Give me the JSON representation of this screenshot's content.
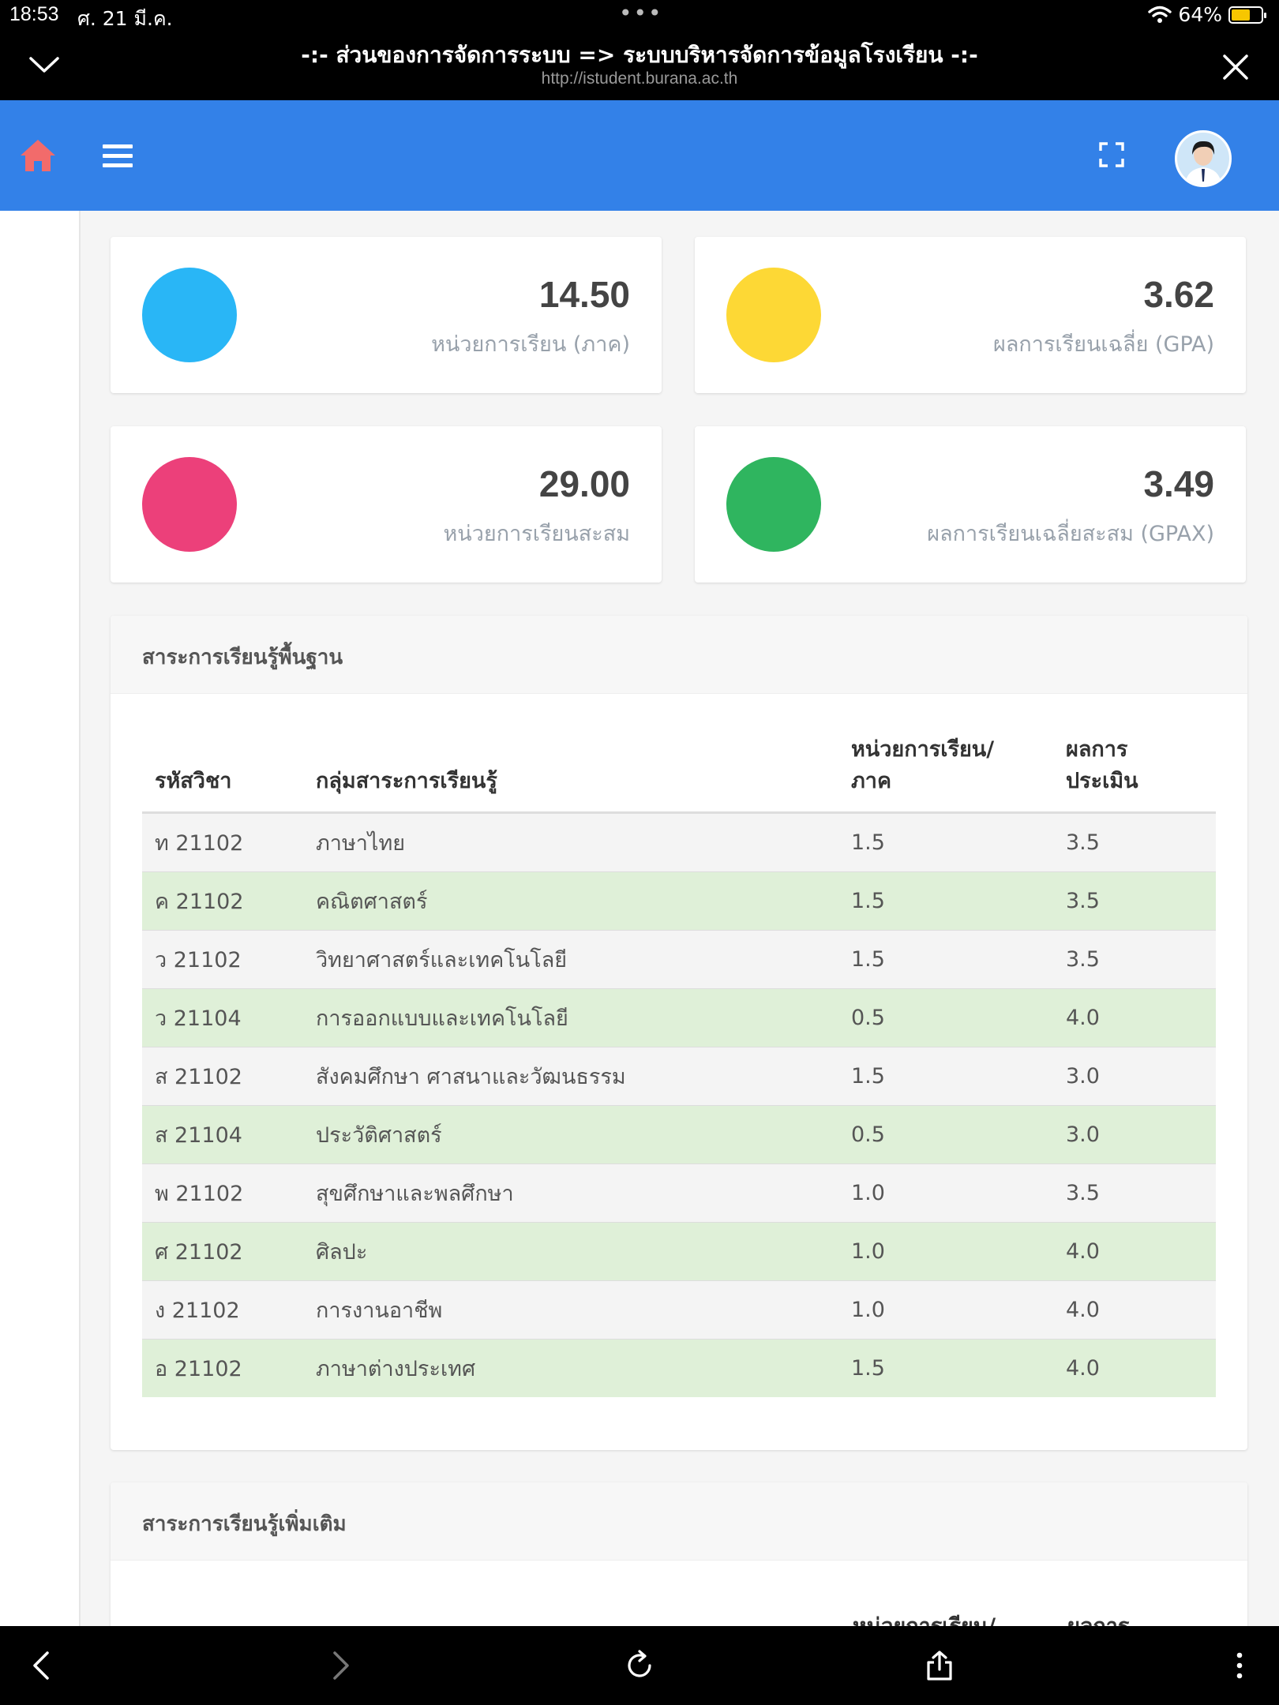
{
  "status_bar": {
    "time": "18:53",
    "date": "ศ. 21 มี.ค.",
    "battery": "64%",
    "battery_level": 0.64
  },
  "browser": {
    "title": "-:- ส่วนของการจัดการระบบ => ระบบบริหารจัดการข้อมูลโรงเรียน -:-",
    "url": "http://istudent.burana.ac.th"
  },
  "colors": {
    "appbar": "#3381e8",
    "home": "#f26b6b",
    "blue": "#29b6f6",
    "yellow": "#fdd835",
    "pink": "#ec407a",
    "green": "#2fb55f",
    "row_alt": "#dff0d8"
  },
  "stats": [
    {
      "value": "14.50",
      "label": "หน่วยการเรียน (ภาค)",
      "color": "#29b6f6"
    },
    {
      "value": "3.62",
      "label": "ผลการเรียนเฉลี่ย (GPA)",
      "color": "#fdd835"
    },
    {
      "value": "29.00",
      "label": "หน่วยการเรียนสะสม",
      "color": "#ec407a"
    },
    {
      "value": "3.49",
      "label": "ผลการเรียนเฉลี่ยสะสม (GPAX)",
      "color": "#2fb55f"
    }
  ],
  "basic": {
    "title": "สาระการเรียนรู้พื้นฐาน",
    "headers": {
      "code": "รหัสวิชา",
      "group": "กลุ่มสาระการเรียนรู้",
      "credit_1": "หน่วยการเรียน/",
      "credit_2": "ภาค",
      "result_1": "ผลการ",
      "result_2": "ประเมิน"
    },
    "rows": [
      {
        "code": "ท 21102",
        "subject": "ภาษาไทย",
        "credit": "1.5",
        "grade": "3.5"
      },
      {
        "code": "ค 21102",
        "subject": "คณิตศาสตร์",
        "credit": "1.5",
        "grade": "3.5"
      },
      {
        "code": "ว 21102",
        "subject": "วิทยาศาสตร์และเทคโนโลยี",
        "credit": "1.5",
        "grade": "3.5"
      },
      {
        "code": "ว 21104",
        "subject": "การออกแบบและเทคโนโลยี",
        "credit": "0.5",
        "grade": "4.0"
      },
      {
        "code": "ส 21102",
        "subject": "สังคมศึกษา ศาสนาและวัฒนธรรม",
        "credit": "1.5",
        "grade": "3.0"
      },
      {
        "code": "ส 21104",
        "subject": "ประวัติศาสตร์",
        "credit": "0.5",
        "grade": "3.0"
      },
      {
        "code": "พ 21102",
        "subject": "สุขศึกษาและพลศึกษา",
        "credit": "1.0",
        "grade": "3.5"
      },
      {
        "code": "ศ 21102",
        "subject": "ศิลปะ",
        "credit": "1.0",
        "grade": "4.0"
      },
      {
        "code": "ง 21102",
        "subject": "การงานอาชีพ",
        "credit": "1.0",
        "grade": "4.0"
      },
      {
        "code": "อ 21102",
        "subject": "ภาษาต่างประเทศ",
        "credit": "1.5",
        "grade": "4.0"
      }
    ]
  },
  "additional": {
    "title": "สาระการเรียนรู้เพิ่มเติม",
    "headers": {
      "credit_1": "หน่วยการเรียน/",
      "result_1": "ผลการ"
    }
  }
}
